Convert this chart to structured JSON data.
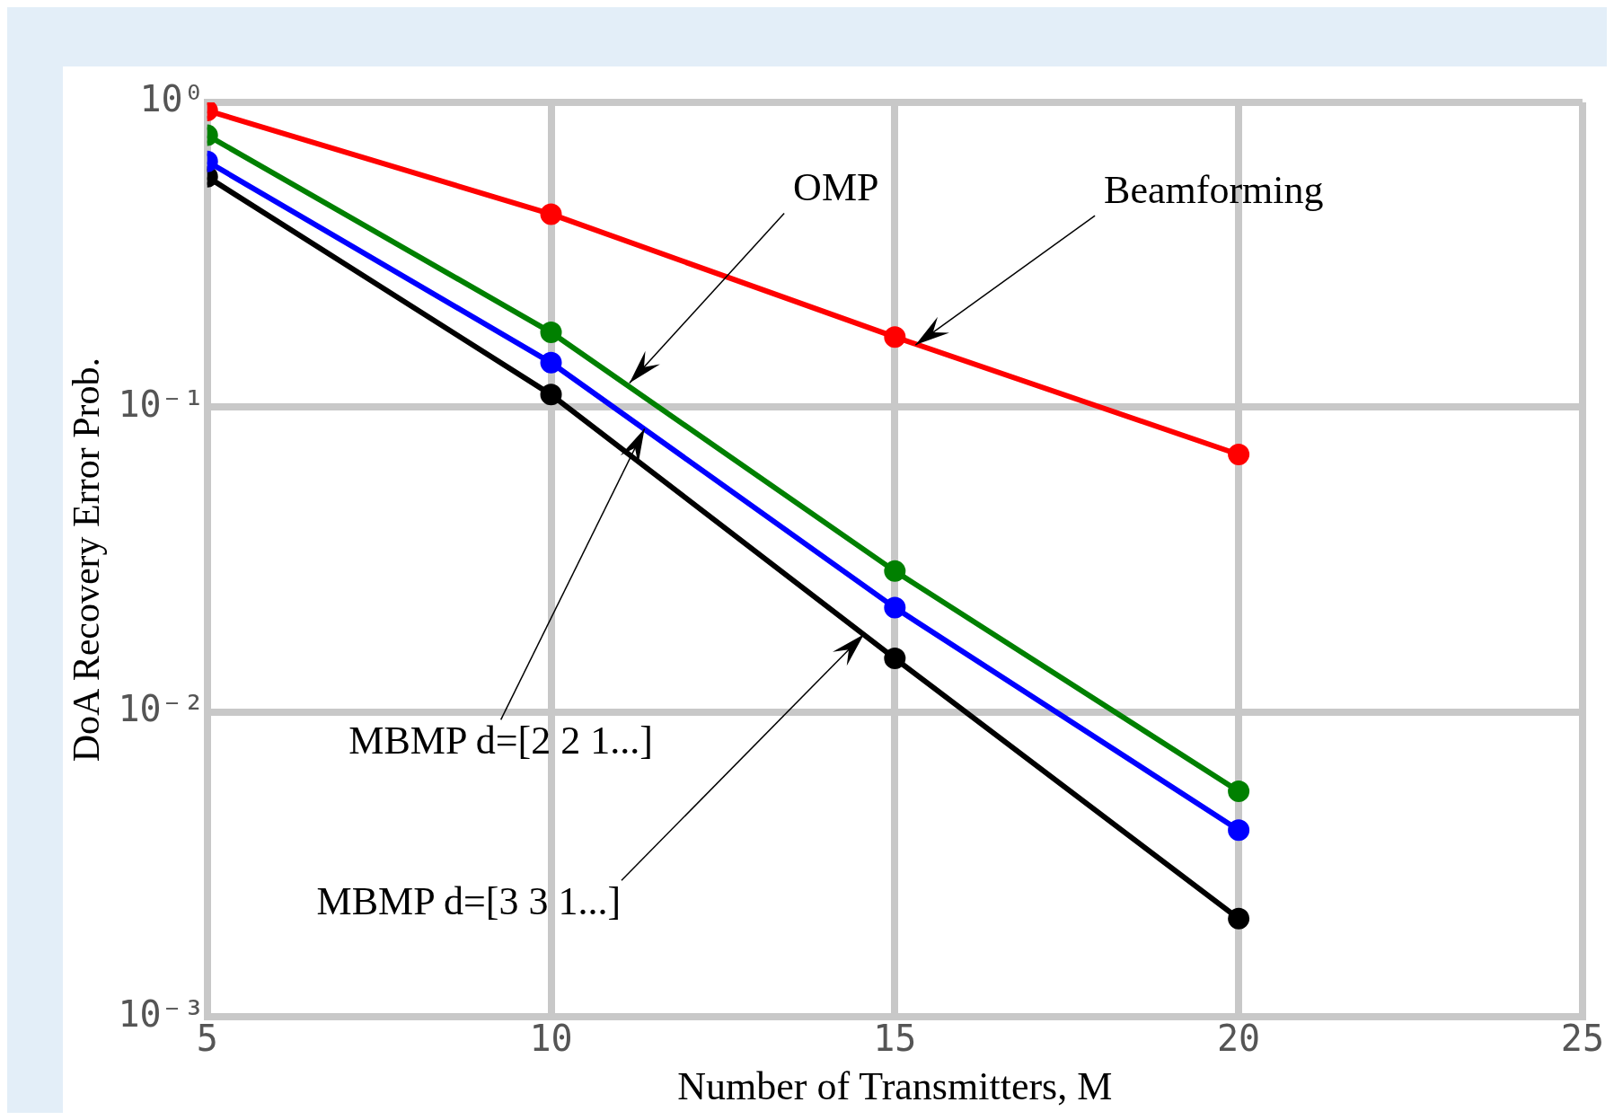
{
  "chart_data": {
    "type": "line",
    "xlabel": "Number of Transmitters, M",
    "ylabel": "DoA Recovery Error Prob.",
    "x": [
      5,
      10,
      15,
      20
    ],
    "series": [
      {
        "color": "#ff0000",
        "values": [
          0.94,
          0.43,
          0.17,
          0.07
        ]
      },
      {
        "color": "#008000",
        "values": [
          0.78,
          0.176,
          0.029,
          0.0055
        ]
      },
      {
        "color": "#0000ff",
        "values": [
          0.64,
          0.14,
          0.022,
          0.0041
        ]
      },
      {
        "color": "#000000",
        "values": [
          0.57,
          0.11,
          0.015,
          0.0021
        ]
      }
    ],
    "xlim": [
      5,
      25
    ],
    "xticks": [
      5,
      10,
      15,
      20,
      25
    ],
    "ylim": [
      0.001,
      1
    ],
    "yticks": [
      {
        "value": 1,
        "label": "10⁰"
      },
      {
        "value": 0.1,
        "label": "10⁻¹"
      },
      {
        "value": 0.01,
        "label": "10⁻²"
      },
      {
        "value": 0.001,
        "label": "10⁻³"
      }
    ],
    "log": "y",
    "grid": true,
    "legend": false,
    "marker": "circle",
    "line_style": "solid",
    "annotations": [
      {
        "text": "OMP",
        "x": 11.14,
        "y": 0.12
      },
      {
        "text": "Beamforming",
        "x": 15.3,
        "y": 0.16
      },
      {
        "text": "MBMP d=[2 2 1...]",
        "x": 11.36,
        "y": 0.085
      },
      {
        "text": "MBMP d=[3 3 1...]",
        "x": 14.55,
        "y": 0.018
      }
    ]
  }
}
